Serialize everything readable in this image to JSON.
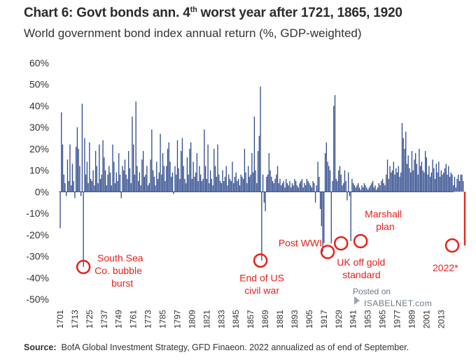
{
  "title_main": "Chart 6: Govt bonds ann. 4",
  "title_sup": "th",
  "title_rest": " worst year after 1721, 1865, 1920",
  "subtitle": "World government bond index annual return (%, GDP-weighted)",
  "source_label": "Source:",
  "source_text": "BofA Global Investment Strategy, GFD Finaeon. 2022 annualized as of end of September.",
  "watermark": {
    "line1": "Posted on",
    "line2": "ISABELNET.com"
  },
  "colors": {
    "bars": "#2e4a8c",
    "highlight": "#e8201a",
    "axis": "#444444"
  },
  "annotations": [
    {
      "year": 1720,
      "value": -35,
      "label": [
        "South Sea",
        "Co. bubble",
        "burst"
      ]
    },
    {
      "year": 1865,
      "value": -32,
      "label": [
        "End of US",
        "civil war"
      ]
    },
    {
      "year": 1920,
      "value": -28,
      "label": [
        "Post WWI"
      ]
    },
    {
      "year": 1931,
      "value": -24,
      "label": [
        "UK off gold",
        "standard"
      ]
    },
    {
      "year": 1947,
      "value": -23,
      "label": [
        "Marshall",
        "plan"
      ]
    },
    {
      "year": 2022,
      "value": -25,
      "label": [
        "2022*"
      ]
    }
  ],
  "chart_data": {
    "type": "bar",
    "title": "Chart 6: Govt bonds ann. 4th worst year after 1721, 1865, 1920",
    "subtitle": "World government bond index annual return (%, GDP-weighted)",
    "xlabel": "",
    "ylabel": "",
    "ylim": [
      -50,
      60
    ],
    "y_ticks": [
      "60%",
      "50%",
      "40%",
      "30%",
      "20%",
      "10%",
      "0%",
      "-10%",
      "-20%",
      "-30%",
      "-40%",
      "-50%"
    ],
    "y_tick_values": [
      60,
      50,
      40,
      30,
      20,
      10,
      0,
      -10,
      -20,
      -30,
      -40,
      -50
    ],
    "x_ticks": [
      "1701",
      "1713",
      "1725",
      "1737",
      "1749",
      "1761",
      "1773",
      "1785",
      "1797",
      "1809",
      "1821",
      "1833",
      "1845",
      "1857",
      "1869",
      "1881",
      "1893",
      "1905",
      "1917",
      "1929",
      "1941",
      "1953",
      "1965",
      "1977",
      "1989",
      "2001",
      "2013"
    ],
    "x_tick_values": [
      1701,
      1713,
      1725,
      1737,
      1749,
      1761,
      1773,
      1785,
      1797,
      1809,
      1821,
      1833,
      1845,
      1857,
      1869,
      1881,
      1893,
      1905,
      1917,
      1929,
      1941,
      1953,
      1965,
      1977,
      1989,
      2001,
      2013
    ],
    "grid": false,
    "start_year": 1701,
    "end_year": 2022,
    "series": [
      {
        "values": [
          -17,
          37,
          22,
          8,
          4,
          -2,
          15,
          5,
          22,
          3,
          13,
          5,
          -3,
          21,
          30,
          20,
          12,
          -2,
          41,
          -35,
          25,
          8,
          14,
          4,
          23,
          6,
          5,
          10,
          3,
          19,
          12,
          4,
          22,
          6,
          8,
          24,
          16,
          10,
          3,
          8,
          12,
          9,
          3,
          22,
          14,
          4,
          9,
          5,
          18,
          8,
          -3,
          12,
          10,
          15,
          8,
          6,
          19,
          11,
          4,
          35,
          22,
          8,
          42,
          12,
          5,
          9,
          3,
          15,
          19,
          7,
          8,
          12,
          3,
          4,
          15,
          29,
          10,
          7,
          3,
          14,
          6,
          9,
          27,
          8,
          18,
          12,
          5,
          12,
          20,
          23,
          14,
          7,
          9,
          -1,
          12,
          8,
          24,
          11,
          6,
          19,
          25,
          12,
          6,
          4,
          16,
          8,
          20,
          23,
          6,
          14,
          7,
          9,
          18,
          5,
          12,
          8,
          5,
          6,
          29,
          12,
          6,
          22,
          4,
          10,
          6,
          3,
          20,
          12,
          7,
          22,
          8,
          5,
          4,
          10,
          5,
          7,
          12,
          3,
          8,
          6,
          5,
          14,
          4,
          7,
          9,
          5,
          6,
          3,
          8,
          7,
          6,
          20,
          9,
          4,
          12,
          7,
          8,
          18,
          9,
          35,
          10,
          4,
          19,
          26,
          49,
          -32,
          8,
          -5,
          -9,
          7,
          8,
          18,
          10,
          7,
          5,
          4,
          6,
          8,
          12,
          4,
          6,
          3,
          4,
          5,
          2,
          6,
          4,
          3,
          5,
          2,
          4,
          3,
          6,
          5,
          3,
          2,
          4,
          5,
          6,
          2,
          4,
          3,
          6,
          5,
          4,
          3,
          2,
          5,
          4,
          -5,
          3,
          14,
          7,
          -8,
          -16,
          -28,
          -24,
          18,
          23,
          14,
          12,
          10,
          -24,
          5,
          40,
          45,
          6,
          5,
          10,
          12,
          8,
          3,
          4,
          10,
          5,
          -4,
          9,
          -2,
          -23,
          6,
          4,
          3,
          2,
          3,
          4,
          2,
          1,
          3,
          2,
          4,
          3,
          2,
          1,
          2,
          3,
          4,
          5,
          2,
          3,
          1,
          2,
          4,
          3,
          5,
          6,
          4,
          3,
          8,
          15,
          6,
          12,
          9,
          10,
          14,
          8,
          11,
          9,
          12,
          7,
          9,
          32,
          25,
          20,
          28,
          13,
          17,
          11,
          9,
          19,
          10,
          15,
          18,
          13,
          8,
          20,
          12,
          14,
          10,
          9,
          19,
          16,
          8,
          12,
          7,
          9,
          15,
          11,
          6,
          13,
          9,
          14,
          7,
          10,
          8,
          9,
          11,
          13,
          8,
          12,
          7,
          9,
          8,
          3,
          7,
          2,
          6,
          8,
          5,
          8,
          8,
          5,
          -25
        ]
      }
    ]
  }
}
